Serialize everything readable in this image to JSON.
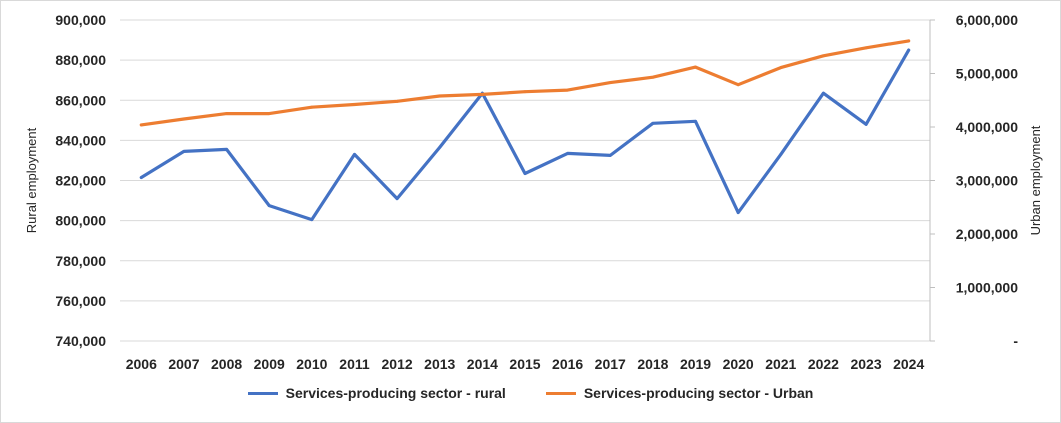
{
  "chart_data": {
    "type": "line",
    "categories": [
      "2006",
      "2007",
      "2008",
      "2009",
      "2010",
      "2011",
      "2012",
      "2013",
      "2014",
      "2015",
      "2016",
      "2017",
      "2018",
      "2019",
      "2020",
      "2021",
      "2022",
      "2023",
      "2024"
    ],
    "ylabel": "Rural employment",
    "y2label": "Urban employment",
    "ylim": [
      740000,
      900000
    ],
    "y2lim": [
      0,
      6000000
    ],
    "yticks": [
      "740,000",
      "760,000",
      "780,000",
      "800,000",
      "820,000",
      "840,000",
      "860,000",
      "880,000",
      "900,000"
    ],
    "y2ticks": [
      "-",
      "1,000,000",
      "2,000,000",
      "3,000,000",
      "4,000,000",
      "5,000,000",
      "6,000,000"
    ],
    "grid": true,
    "legend_position": "bottom",
    "series": [
      {
        "name": "Services-producing sector - rural",
        "axis": "left",
        "color": "#4472c4",
        "values": [
          821500,
          834500,
          835500,
          807500,
          800500,
          833000,
          811000,
          836500,
          863500,
          823500,
          833500,
          832500,
          848500,
          849500,
          804000,
          833000,
          863500,
          848000,
          885000
        ]
      },
      {
        "name": "Services-producing sector - Urban",
        "axis": "right",
        "color": "#ed7d31",
        "values": [
          4040000,
          4150000,
          4250000,
          4250000,
          4370000,
          4420000,
          4480000,
          4580000,
          4610000,
          4660000,
          4690000,
          4830000,
          4930000,
          5120000,
          4790000,
          5110000,
          5330000,
          5480000,
          5610000
        ]
      }
    ]
  }
}
